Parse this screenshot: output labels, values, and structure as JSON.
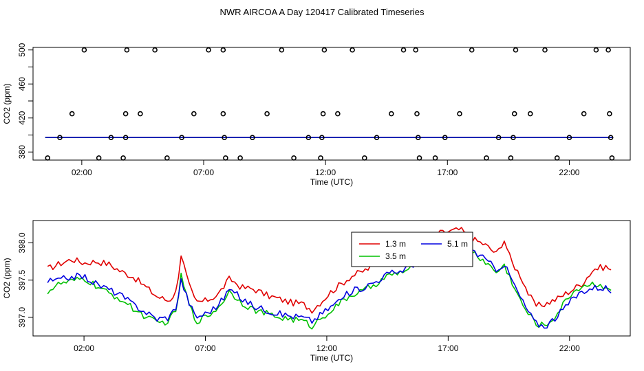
{
  "title": "NWR AIRCOA A  Day 120417  Calibrated Timeseries",
  "chart_data": [
    {
      "type": "scatter",
      "xlabel": "Time (UTC)",
      "ylabel": "CO2 (ppm)",
      "xlim": [
        0.0,
        24.5
      ],
      "ylim": [
        370.5,
        503.0
      ],
      "x_ticks": [
        2,
        7,
        12,
        17,
        22
      ],
      "x_tick_labels": [
        "02:00",
        "07:00",
        "12:00",
        "17:00",
        "22:00"
      ],
      "y_ticks": [
        380,
        420,
        460,
        500
      ],
      "y_tick_labels": [
        "380",
        "420",
        "460",
        "500"
      ],
      "y_minor_ticks": [
        400,
        440,
        480
      ],
      "grid": false,
      "points": [
        {
          "x": 0.6,
          "y": 373
        },
        {
          "x": 1.1,
          "y": 397
        },
        {
          "x": 1.6,
          "y": 425
        },
        {
          "x": 2.1,
          "y": 500
        },
        {
          "x": 2.7,
          "y": 373
        },
        {
          "x": 3.2,
          "y": 397
        },
        {
          "x": 3.7,
          "y": 373
        },
        {
          "x": 3.8,
          "y": 425
        },
        {
          "x": 3.8,
          "y": 397
        },
        {
          "x": 3.85,
          "y": 500
        },
        {
          "x": 4.4,
          "y": 425
        },
        {
          "x": 5.0,
          "y": 500
        },
        {
          "x": 5.5,
          "y": 373
        },
        {
          "x": 6.1,
          "y": 397
        },
        {
          "x": 6.6,
          "y": 425
        },
        {
          "x": 7.2,
          "y": 500
        },
        {
          "x": 7.8,
          "y": 500
        },
        {
          "x": 7.8,
          "y": 425
        },
        {
          "x": 7.85,
          "y": 397
        },
        {
          "x": 7.9,
          "y": 373
        },
        {
          "x": 8.5,
          "y": 373
        },
        {
          "x": 9.0,
          "y": 397
        },
        {
          "x": 9.6,
          "y": 425
        },
        {
          "x": 10.2,
          "y": 500
        },
        {
          "x": 10.7,
          "y": 373
        },
        {
          "x": 11.3,
          "y": 397
        },
        {
          "x": 11.8,
          "y": 373
        },
        {
          "x": 11.85,
          "y": 397
        },
        {
          "x": 11.9,
          "y": 425
        },
        {
          "x": 11.95,
          "y": 500
        },
        {
          "x": 12.5,
          "y": 425
        },
        {
          "x": 13.1,
          "y": 500
        },
        {
          "x": 13.6,
          "y": 373
        },
        {
          "x": 14.1,
          "y": 397
        },
        {
          "x": 14.7,
          "y": 425
        },
        {
          "x": 15.2,
          "y": 500
        },
        {
          "x": 15.7,
          "y": 500
        },
        {
          "x": 15.75,
          "y": 425
        },
        {
          "x": 15.8,
          "y": 397
        },
        {
          "x": 15.85,
          "y": 373
        },
        {
          "x": 16.5,
          "y": 373
        },
        {
          "x": 16.9,
          "y": 397
        },
        {
          "x": 17.5,
          "y": 425
        },
        {
          "x": 18.0,
          "y": 500
        },
        {
          "x": 18.6,
          "y": 373
        },
        {
          "x": 19.1,
          "y": 397
        },
        {
          "x": 19.6,
          "y": 373
        },
        {
          "x": 19.7,
          "y": 397
        },
        {
          "x": 19.75,
          "y": 425
        },
        {
          "x": 19.8,
          "y": 500
        },
        {
          "x": 20.4,
          "y": 425
        },
        {
          "x": 21.0,
          "y": 500
        },
        {
          "x": 21.5,
          "y": 373
        },
        {
          "x": 22.0,
          "y": 397
        },
        {
          "x": 22.6,
          "y": 425
        },
        {
          "x": 23.1,
          "y": 500
        },
        {
          "x": 23.6,
          "y": 500
        },
        {
          "x": 23.65,
          "y": 425
        },
        {
          "x": 23.7,
          "y": 397
        },
        {
          "x": 23.75,
          "y": 373
        }
      ],
      "reference_lines": [
        {
          "color": "#e00000",
          "y": 397.4
        },
        {
          "color": "#00c000",
          "y": 397.1
        },
        {
          "color": "#0000e0",
          "y": 397.2
        }
      ]
    },
    {
      "type": "line",
      "xlabel": "Time (UTC)",
      "ylabel": "CO2 (ppm)",
      "xlim": [
        -0.1,
        24.5
      ],
      "ylim": [
        396.75,
        398.3
      ],
      "x_ticks": [
        2,
        7,
        12,
        17,
        22
      ],
      "x_tick_labels": [
        "02:00",
        "07:00",
        "12:00",
        "17:00",
        "22:00"
      ],
      "y_ticks": [
        397.0,
        397.5,
        398.0
      ],
      "y_tick_labels": [
        "397.0",
        "397.5",
        "398.0"
      ],
      "grid": false,
      "legend_position": "top-right",
      "x_start": 0.5,
      "x_step": 0.11,
      "series": [
        {
          "name": "1.3 m",
          "color": "#e00000",
          "anchors": [
            [
              0.5,
              397.65
            ],
            [
              1.0,
              397.72
            ],
            [
              1.5,
              397.78
            ],
            [
              2.0,
              397.73
            ],
            [
              2.5,
              397.75
            ],
            [
              3.0,
              397.72
            ],
            [
              3.5,
              397.62
            ],
            [
              4.0,
              397.55
            ],
            [
              4.5,
              397.42
            ],
            [
              5.0,
              397.28
            ],
            [
              5.5,
              397.22
            ],
            [
              5.8,
              397.35
            ],
            [
              6.0,
              397.85
            ],
            [
              6.3,
              397.45
            ],
            [
              6.6,
              397.2
            ],
            [
              7.0,
              397.22
            ],
            [
              7.5,
              397.3
            ],
            [
              8.0,
              397.52
            ],
            [
              8.5,
              397.4
            ],
            [
              9.0,
              397.38
            ],
            [
              9.5,
              397.3
            ],
            [
              10.0,
              397.25
            ],
            [
              10.5,
              397.2
            ],
            [
              11.0,
              397.18
            ],
            [
              11.4,
              397.1
            ],
            [
              11.8,
              397.22
            ],
            [
              12.2,
              397.35
            ],
            [
              12.6,
              397.45
            ],
            [
              13.0,
              397.55
            ],
            [
              13.5,
              397.62
            ],
            [
              14.0,
              397.7
            ],
            [
              14.5,
              397.82
            ],
            [
              15.0,
              397.9
            ],
            [
              15.5,
              397.98
            ],
            [
              16.0,
              398.05
            ],
            [
              16.5,
              398.12
            ],
            [
              17.0,
              398.15
            ],
            [
              17.5,
              398.18
            ],
            [
              18.0,
              398.05
            ],
            [
              18.5,
              397.98
            ],
            [
              19.0,
              397.85
            ],
            [
              19.3,
              398.05
            ],
            [
              19.6,
              397.75
            ],
            [
              20.0,
              397.55
            ],
            [
              20.3,
              397.32
            ],
            [
              20.6,
              397.15
            ],
            [
              21.0,
              397.18
            ],
            [
              21.5,
              397.25
            ],
            [
              22.0,
              397.35
            ],
            [
              22.5,
              397.45
            ],
            [
              23.0,
              397.65
            ],
            [
              23.5,
              397.68
            ],
            [
              23.8,
              397.62
            ]
          ]
        },
        {
          "name": "3.5 m",
          "color": "#00c000",
          "anchors": [
            [
              0.5,
              397.35
            ],
            [
              1.0,
              397.45
            ],
            [
              1.5,
              397.48
            ],
            [
              2.0,
              397.52
            ],
            [
              2.5,
              397.42
            ],
            [
              3.0,
              397.32
            ],
            [
              3.5,
              397.25
            ],
            [
              4.0,
              397.12
            ],
            [
              4.5,
              397.02
            ],
            [
              5.0,
              396.92
            ],
            [
              5.5,
              396.95
            ],
            [
              5.8,
              397.1
            ],
            [
              6.0,
              397.55
            ],
            [
              6.3,
              397.2
            ],
            [
              6.6,
              396.95
            ],
            [
              7.0,
              397.0
            ],
            [
              7.5,
              397.12
            ],
            [
              8.0,
              397.35
            ],
            [
              8.5,
              397.2
            ],
            [
              9.0,
              397.1
            ],
            [
              9.5,
              397.05
            ],
            [
              10.0,
              397.0
            ],
            [
              10.5,
              396.98
            ],
            [
              11.0,
              396.95
            ],
            [
              11.4,
              396.88
            ],
            [
              11.8,
              397.0
            ],
            [
              12.2,
              397.1
            ],
            [
              12.6,
              397.2
            ],
            [
              13.0,
              397.3
            ],
            [
              13.5,
              397.35
            ],
            [
              14.0,
              397.45
            ],
            [
              14.5,
              397.55
            ],
            [
              15.0,
              397.6
            ],
            [
              15.5,
              397.65
            ],
            [
              16.0,
              397.78
            ],
            [
              16.5,
              397.88
            ],
            [
              17.0,
              397.9
            ],
            [
              17.5,
              397.95
            ],
            [
              18.0,
              397.88
            ],
            [
              18.5,
              397.75
            ],
            [
              19.0,
              397.6
            ],
            [
              19.3,
              397.7
            ],
            [
              19.6,
              397.5
            ],
            [
              20.0,
              397.2
            ],
            [
              20.3,
              397.05
            ],
            [
              20.6,
              396.92
            ],
            [
              21.0,
              396.88
            ],
            [
              21.5,
              397.05
            ],
            [
              22.0,
              397.3
            ],
            [
              22.5,
              397.42
            ],
            [
              23.0,
              397.45
            ],
            [
              23.5,
              397.42
            ],
            [
              23.8,
              397.35
            ]
          ]
        },
        {
          "name": "5.1 m",
          "color": "#0000e0",
          "anchors": [
            [
              0.5,
              397.48
            ],
            [
              1.0,
              397.5
            ],
            [
              1.5,
              397.55
            ],
            [
              2.0,
              397.55
            ],
            [
              2.5,
              397.45
            ],
            [
              3.0,
              397.38
            ],
            [
              3.5,
              397.3
            ],
            [
              4.0,
              397.18
            ],
            [
              4.5,
              397.08
            ],
            [
              5.0,
              396.98
            ],
            [
              5.5,
              397.0
            ],
            [
              5.8,
              397.15
            ],
            [
              6.0,
              397.5
            ],
            [
              6.3,
              397.22
            ],
            [
              6.6,
              397.0
            ],
            [
              7.0,
              397.05
            ],
            [
              7.5,
              397.15
            ],
            [
              8.0,
              397.38
            ],
            [
              8.5,
              397.25
            ],
            [
              9.0,
              397.15
            ],
            [
              9.5,
              397.1
            ],
            [
              10.0,
              397.05
            ],
            [
              10.5,
              397.02
            ],
            [
              11.0,
              397.0
            ],
            [
              11.4,
              396.95
            ],
            [
              11.8,
              397.05
            ],
            [
              12.2,
              397.15
            ],
            [
              12.6,
              397.25
            ],
            [
              13.0,
              397.35
            ],
            [
              13.5,
              397.4
            ],
            [
              14.0,
              397.48
            ],
            [
              14.5,
              397.58
            ],
            [
              15.0,
              397.62
            ],
            [
              15.5,
              397.7
            ],
            [
              16.0,
              397.82
            ],
            [
              16.5,
              397.95
            ],
            [
              17.0,
              397.95
            ],
            [
              17.5,
              398.0
            ],
            [
              18.0,
              397.9
            ],
            [
              18.5,
              397.78
            ],
            [
              19.0,
              397.65
            ],
            [
              19.3,
              397.72
            ],
            [
              19.6,
              397.52
            ],
            [
              20.0,
              397.25
            ],
            [
              20.3,
              397.08
            ],
            [
              20.6,
              396.92
            ],
            [
              21.0,
              396.88
            ],
            [
              21.5,
              397.02
            ],
            [
              22.0,
              397.2
            ],
            [
              22.5,
              397.35
            ],
            [
              23.0,
              397.4
            ],
            [
              23.5,
              397.4
            ],
            [
              23.8,
              397.32
            ]
          ]
        }
      ]
    }
  ]
}
